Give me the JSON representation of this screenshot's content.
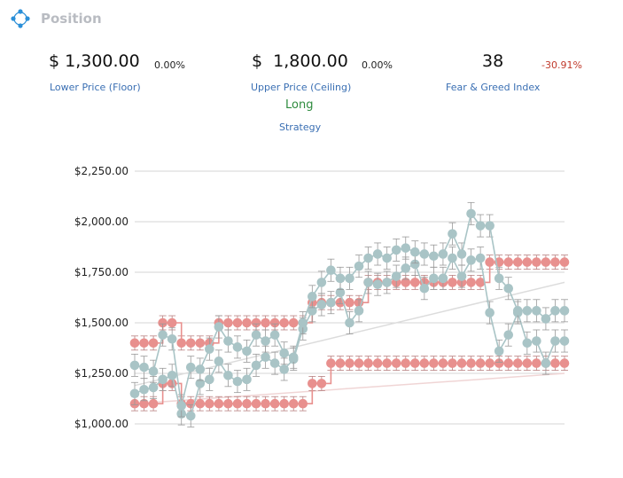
{
  "header": {
    "title": "Position",
    "icon": "position-nodes-icon"
  },
  "stats": {
    "lower": {
      "value": "$ 1,300.00",
      "pct": "0.00%",
      "label": "Lower Price (Floor)"
    },
    "upper": {
      "value": "$  1,800.00",
      "pct": "0.00%",
      "label": "Upper Price (Ceiling)"
    },
    "fear_greed": {
      "value": "38",
      "pct": "-30.91%",
      "label": "Fear & Greed Index"
    },
    "strategy": {
      "value": "Long",
      "label": "Strategy"
    }
  },
  "colors": {
    "upper_band": "#e8908e",
    "lower_band": "#e8908e",
    "price": "#a9c4c6",
    "error_bar": "#999999",
    "negative": "#c0392b",
    "positive": "#2e8b3e"
  },
  "chart_data": {
    "type": "line",
    "ylim": [
      1000,
      2250
    ],
    "yticks": [
      "$1,000.00",
      "$1,250.00",
      "$1,500.00",
      "$1,750.00",
      "$2,000.00",
      "$2,250.00"
    ],
    "grid": true,
    "series": [
      {
        "role": "upper-band",
        "values": [
          1400,
          1400,
          1400,
          1500,
          1500,
          1400,
          1400,
          1400,
          1400,
          1500,
          1500,
          1500,
          1500,
          1500,
          1500,
          1500,
          1500,
          1500,
          1500,
          1600,
          1600,
          1600,
          1600,
          1600,
          1600,
          1700,
          1700,
          1700,
          1700,
          1700,
          1700,
          1700,
          1700,
          1700,
          1700,
          1700,
          1700,
          1700,
          1800,
          1800,
          1800,
          1800,
          1800,
          1800,
          1800,
          1800,
          1800
        ]
      },
      {
        "role": "lower-band",
        "values": [
          1100,
          1100,
          1100,
          1200,
          1200,
          1100,
          1100,
          1100,
          1100,
          1100,
          1100,
          1100,
          1100,
          1100,
          1100,
          1100,
          1100,
          1100,
          1100,
          1200,
          1200,
          1300,
          1300,
          1300,
          1300,
          1300,
          1300,
          1300,
          1300,
          1300,
          1300,
          1300,
          1300,
          1300,
          1300,
          1300,
          1300,
          1300,
          1300,
          1300,
          1300,
          1300,
          1300,
          1300,
          1300,
          1300,
          1300
        ]
      },
      {
        "role": "price-high",
        "values": [
          1290,
          1280,
          1260,
          1440,
          1420,
          1090,
          1280,
          1270,
          1370,
          1480,
          1410,
          1380,
          1360,
          1440,
          1410,
          1440,
          1350,
          1330,
          1500,
          1630,
          1700,
          1760,
          1720,
          1720,
          1780,
          1820,
          1840,
          1820,
          1860,
          1870,
          1850,
          1840,
          1830,
          1840,
          1940,
          1840,
          2040,
          1980,
          1980,
          1720,
          1670,
          1560,
          1560,
          1560,
          1520,
          1560,
          1560
        ]
      },
      {
        "role": "price-low",
        "values": [
          1150,
          1170,
          1180,
          1220,
          1240,
          1050,
          1040,
          1200,
          1220,
          1310,
          1240,
          1210,
          1220,
          1290,
          1330,
          1300,
          1270,
          1320,
          1470,
          1560,
          1590,
          1600,
          1650,
          1500,
          1560,
          1700,
          1690,
          1700,
          1730,
          1770,
          1790,
          1670,
          1720,
          1720,
          1820,
          1730,
          1810,
          1820,
          1550,
          1360,
          1440,
          1550,
          1400,
          1410,
          1300,
          1410,
          1410
        ]
      }
    ]
  }
}
